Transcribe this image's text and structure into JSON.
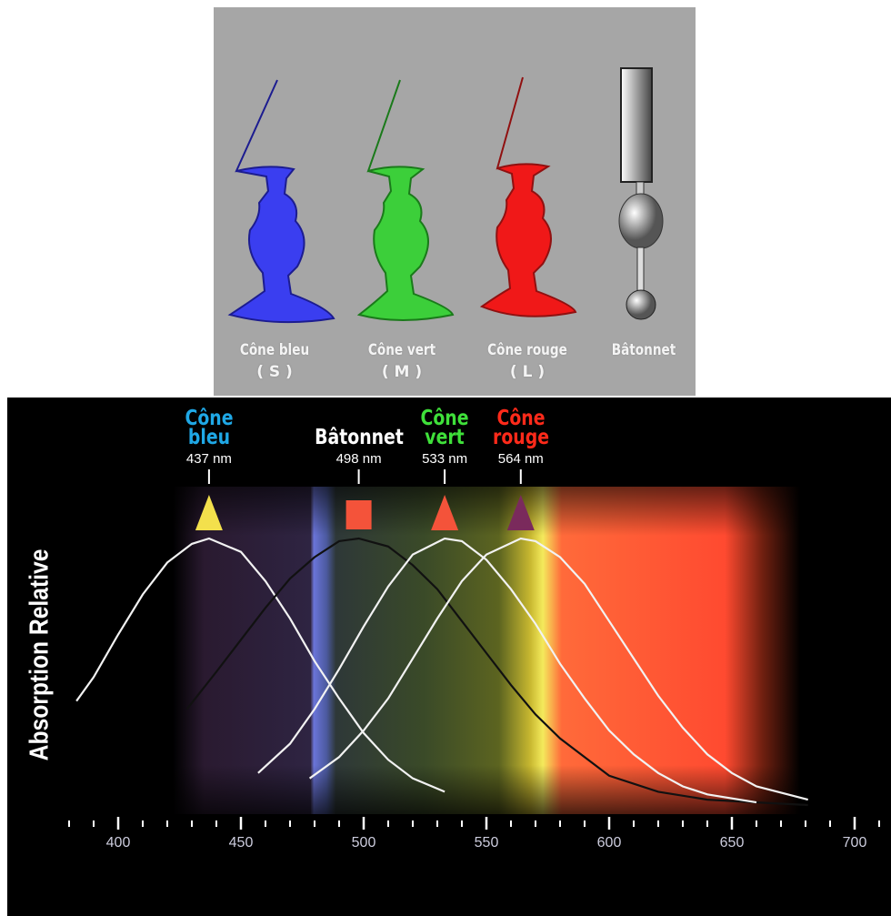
{
  "illustration": {
    "cells": [
      {
        "label": "Cône bleu",
        "sub": "( S )"
      },
      {
        "label": "Cône vert",
        "sub": "( M )"
      },
      {
        "label": "Cône rouge",
        "sub": "( L )"
      },
      {
        "label": "Bâtonnet"
      }
    ]
  },
  "chart_data": {
    "type": "line",
    "y_label": "Absorption Relative",
    "xlim": [
      355,
      715
    ],
    "xticks": [
      400,
      450,
      500,
      550,
      600,
      650,
      700
    ],
    "xminorticks": [
      380,
      390,
      410,
      420,
      430,
      440,
      460,
      470,
      480,
      490,
      510,
      520,
      530,
      540,
      560,
      570,
      580,
      590,
      610,
      620,
      630,
      640,
      660,
      670,
      680,
      690,
      710
    ],
    "ylim": [
      0,
      1.05
    ],
    "series": [
      {
        "name": "Cône bleu",
        "color": "#1fa8e6",
        "line_color": "#f2f2f2",
        "marker": "triangle",
        "marker_color": "#f3e04c",
        "peak": 437,
        "peak_label": "437 nm",
        "x": [
          383,
          390,
          400,
          410,
          420,
          430,
          437,
          450,
          460,
          470,
          480,
          490,
          500,
          510,
          520,
          533
        ],
        "values": [
          0.39,
          0.48,
          0.64,
          0.79,
          0.91,
          0.98,
          1,
          0.95,
          0.84,
          0.7,
          0.54,
          0.4,
          0.27,
          0.17,
          0.1,
          0.05
        ]
      },
      {
        "name": "Bâtonnet",
        "color": "#ffffff",
        "line_color": "#111111",
        "marker": "square",
        "marker_color": "#f4533a",
        "peak": 498,
        "peak_label": "498 nm",
        "x": [
          428,
          440,
          450,
          460,
          470,
          480,
          490,
          498,
          510,
          520,
          530,
          540,
          550,
          560,
          570,
          580,
          600,
          620,
          640,
          660,
          681
        ],
        "values": [
          0.36,
          0.5,
          0.62,
          0.74,
          0.85,
          0.93,
          0.99,
          1,
          0.97,
          0.9,
          0.81,
          0.69,
          0.57,
          0.45,
          0.34,
          0.25,
          0.11,
          0.05,
          0.02,
          0.01,
          0
        ]
      },
      {
        "name": "Cône vert",
        "color": "#3fe03a",
        "line_color": "#f2f2f2",
        "marker": "triangle",
        "marker_color": "#f4533a",
        "peak": 533,
        "peak_label": "533 nm",
        "x": [
          457,
          470,
          480,
          490,
          500,
          510,
          520,
          533,
          540,
          550,
          560,
          570,
          580,
          590,
          600,
          610,
          620,
          630,
          640,
          660
        ],
        "values": [
          0.12,
          0.23,
          0.36,
          0.51,
          0.67,
          0.82,
          0.94,
          1,
          0.99,
          0.92,
          0.81,
          0.68,
          0.53,
          0.4,
          0.28,
          0.19,
          0.12,
          0.07,
          0.04,
          0.01
        ]
      },
      {
        "name": "Cône rouge",
        "color": "#ff2a1a",
        "line_color": "#f2f2f2",
        "marker": "triangle",
        "marker_color": "#7a2a5c",
        "peak": 564,
        "peak_label": "564 nm",
        "x": [
          478,
          490,
          500,
          510,
          520,
          530,
          540,
          550,
          564,
          570,
          580,
          590,
          600,
          610,
          620,
          630,
          640,
          650,
          660,
          681
        ],
        "values": [
          0.1,
          0.18,
          0.28,
          0.4,
          0.55,
          0.7,
          0.84,
          0.94,
          1,
          0.99,
          0.93,
          0.83,
          0.69,
          0.55,
          0.41,
          0.29,
          0.19,
          0.12,
          0.07,
          0.02
        ]
      }
    ]
  }
}
